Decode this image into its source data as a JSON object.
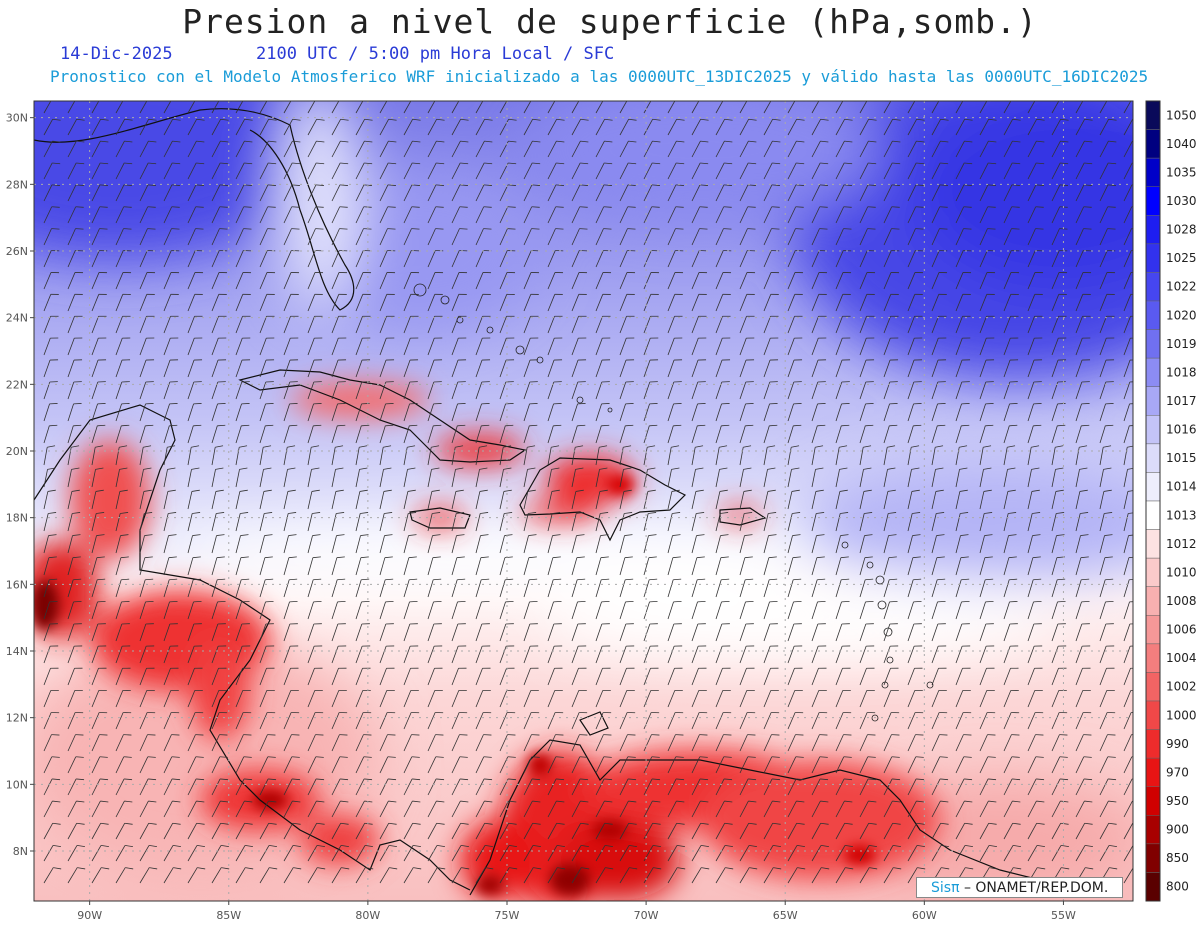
{
  "header": {
    "title": "Presion a nivel de superficie (hPa,somb.)",
    "date": "14-Dic-2025",
    "time_line": "2100 UTC / 5:00 pm Hora Local / SFC",
    "forecast_line": "Pronostico con el Modelo Atmosferico WRF inicializado a las 0000UTC_13DIC2025 y válido hasta las  0000UTC_16DIC2025"
  },
  "map": {
    "lon_range": [
      -92,
      -52.5
    ],
    "lat_range": [
      6.5,
      30.5
    ],
    "lat_labels": [
      "30N",
      "28N",
      "26N",
      "24N",
      "22N",
      "20N",
      "18N",
      "16N",
      "14N",
      "12N",
      "10N",
      "8N"
    ],
    "lat_values": [
      30,
      28,
      26,
      24,
      22,
      20,
      18,
      16,
      14,
      12,
      10,
      8
    ],
    "lon_labels": [
      "90W",
      "85W",
      "80W",
      "75W",
      "70W",
      "65W",
      "60W",
      "55W"
    ],
    "lon_values": [
      -90,
      -85,
      -80,
      -75,
      -70,
      -65,
      -60,
      -55
    ]
  },
  "colorbar": {
    "levels": [
      "1050",
      "1040",
      "1035",
      "1030",
      "1028",
      "1025",
      "1022",
      "1020",
      "1019",
      "1018",
      "1017",
      "1016",
      "1015",
      "1014",
      "1013",
      "1012",
      "1010",
      "1008",
      "1006",
      "1004",
      "1002",
      "1000",
      "990",
      "970",
      "950",
      "900",
      "850",
      "800"
    ],
    "colors": [
      "#0a0a5a",
      "#000080",
      "#0000c8",
      "#0000ff",
      "#1e1ef0",
      "#3232ee",
      "#4646f0",
      "#5a5af0",
      "#7070f0",
      "#8c8cf4",
      "#a8a8f6",
      "#c4c4f8",
      "#dcdcfa",
      "#eeeefc",
      "#ffffff",
      "#fde2e2",
      "#fbcaca",
      "#f8b0b0",
      "#f69898",
      "#f47e7e",
      "#f26464",
      "#f04848",
      "#ee2c2c",
      "#e81414",
      "#d00000",
      "#a80000",
      "#800000",
      "#5a0000"
    ]
  },
  "credit": {
    "sis": "Sisπ",
    "org": " – ONAMET/REP.DOM."
  }
}
